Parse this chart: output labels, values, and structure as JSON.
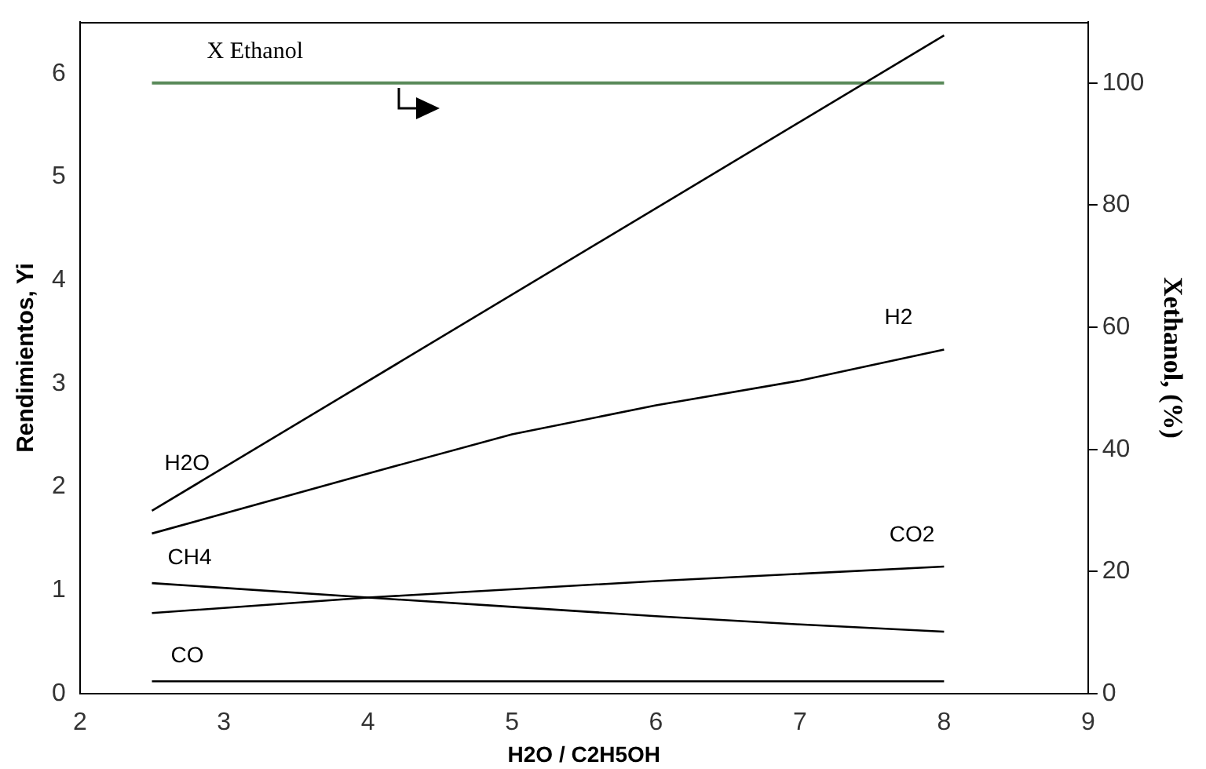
{
  "chart_data": {
    "type": "line",
    "xlabel": "H2O / C2H5OH",
    "ylabel": "Rendimientos, Yi",
    "y2label": "Xethanol, (%)",
    "xlim": [
      2,
      9
    ],
    "xticks": [
      2,
      3,
      4,
      5,
      6,
      7,
      8,
      9
    ],
    "ylim": [
      0,
      6.5
    ],
    "yticks": [
      0,
      1,
      2,
      3,
      4,
      5,
      6
    ],
    "y2lim": [
      0,
      110
    ],
    "y2ticks": [
      0,
      20,
      40,
      60,
      80,
      100
    ],
    "grid": false,
    "legend": false,
    "marker": "none",
    "line_style": "solid",
    "series": [
      {
        "name": "H2O",
        "color": "#000000",
        "x": [
          2.5,
          8
        ],
        "values": [
          1.77,
          6.37
        ]
      },
      {
        "name": "H2",
        "color": "#000000",
        "x": [
          2.5,
          4,
          5,
          6,
          7,
          8
        ],
        "values": [
          1.55,
          2.13,
          2.51,
          2.79,
          3.03,
          3.33
        ]
      },
      {
        "name": "CO2",
        "color": "#000000",
        "x": [
          2.5,
          4,
          6,
          8
        ],
        "values": [
          0.78,
          0.93,
          1.09,
          1.23
        ]
      },
      {
        "name": "CH4",
        "color": "#000000",
        "x": [
          2.5,
          4,
          5,
          6,
          7,
          8
        ],
        "values": [
          1.07,
          0.93,
          0.84,
          0.75,
          0.67,
          0.6
        ]
      },
      {
        "name": "CO",
        "color": "#000000",
        "x": [
          2.5,
          8
        ],
        "values": [
          0.12,
          0.12
        ]
      },
      {
        "name": "X Ethanol",
        "color": "#5a8a5a",
        "axis": "y2",
        "x": [
          2.5,
          8
        ],
        "values": [
          100,
          100
        ]
      }
    ]
  }
}
